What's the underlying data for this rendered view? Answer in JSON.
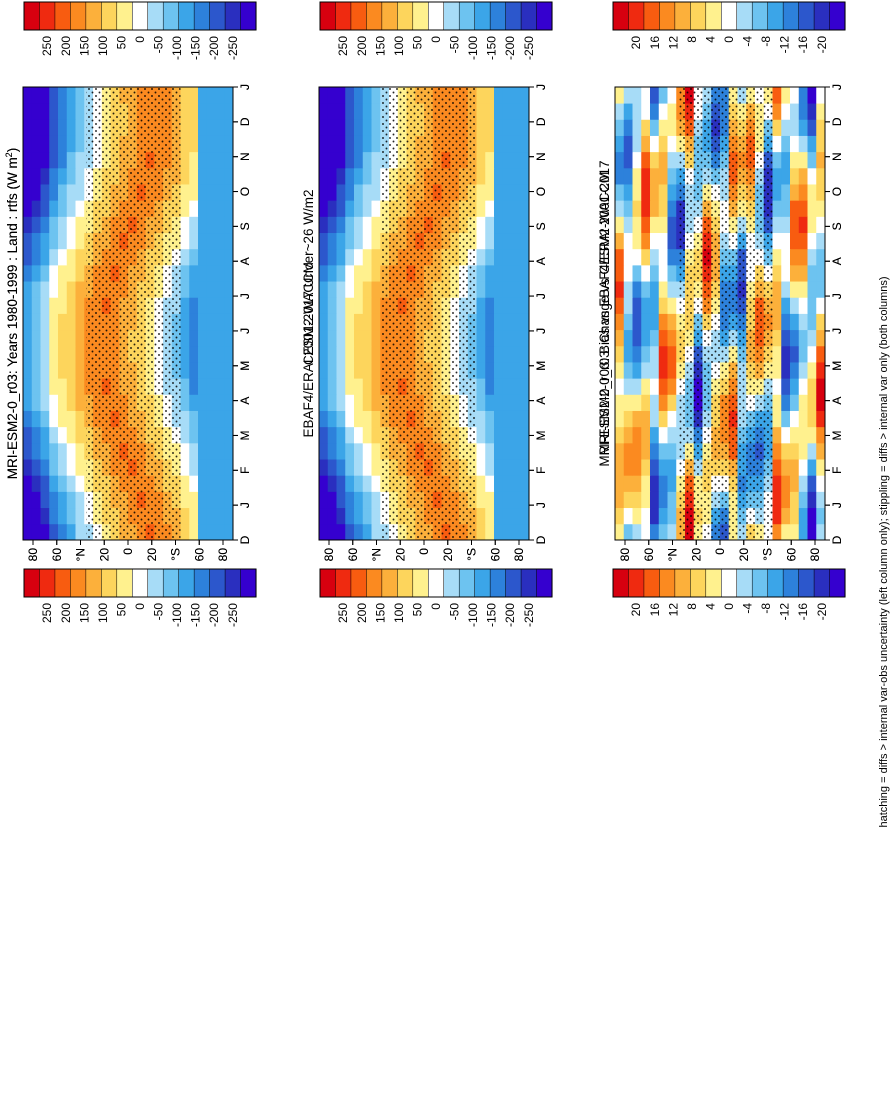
{
  "figure_caption": "hatching = diffs > internal var-obs uncertainty (left column only); stippling = diffs > internal var only (both columns)",
  "chart_data": [
    {
      "type": "heatmap",
      "id": "p1",
      "title": "MRI-ESM2-0_r03: Years 1980-1999 : Land : rtfs (W m",
      "title_sup": "2",
      "title_close": ")",
      "x_ticks": [
        "D",
        "J",
        "F",
        "M",
        "A",
        "M",
        "J",
        "J",
        "A",
        "S",
        "O",
        "N",
        "D",
        "J"
      ],
      "y_ticks": [
        "80",
        "60",
        "°N",
        "20",
        "0",
        "20",
        "°S",
        "60",
        "80"
      ],
      "colorbar": [
        "250",
        "200",
        "150",
        "100",
        "50",
        "0",
        "-50",
        "-100",
        "-150",
        "-200",
        "-250"
      ],
      "zlim": [
        -275,
        275
      ],
      "units": "W m-2"
    },
    {
      "type": "heatmap",
      "id": "p2",
      "title": "EBAF4/ERAI 2001-2017 Uncer~26 W/m2",
      "x_ticks": [
        "D",
        "J",
        "F",
        "M",
        "A",
        "M",
        "J",
        "J",
        "A",
        "S",
        "O",
        "N",
        "D",
        "J"
      ],
      "y_ticks": [
        "80",
        "60",
        "°N",
        "20",
        "0",
        "20",
        "°S",
        "60",
        "80"
      ],
      "colorbar": [
        "250",
        "200",
        "150",
        "100",
        "50",
        "0",
        "-50",
        "-100",
        "-150",
        "-200",
        "-250"
      ],
      "zlim": [
        -275,
        275
      ],
      "units": "W m-2"
    },
    {
      "type": "heatmap",
      "id": "p3",
      "title": "MRI-ESM2-0_r03: Bias vs EBAF4/ERAI 2001-2017",
      "x_ticks": [
        "D",
        "J",
        "F",
        "M",
        "A",
        "M",
        "J",
        "J",
        "A",
        "S",
        "O",
        "N",
        "D",
        "J"
      ],
      "y_ticks": [
        "80",
        "60",
        "°N",
        "20",
        "0",
        "20",
        "°S",
        "60",
        "80"
      ],
      "colorbar": [
        "20",
        "16",
        "12",
        "8",
        "4",
        "0",
        "-4",
        "-8",
        "-12",
        "-16",
        "-20"
      ],
      "zlim": [
        -22,
        22
      ],
      "units": "W m-2"
    },
    {
      "type": "heatmap",
      "id": "p4",
      "title": "MRI-ESM2-0_r03: Years 1980-1999 : Land : rtfs (W m",
      "title_sup": "2",
      "title_close": ")",
      "x_ticks": [
        "D",
        "J",
        "F",
        "M",
        "A",
        "M",
        "J",
        "J",
        "A",
        "S",
        "O",
        "N",
        "D",
        "J"
      ],
      "y_ticks": [
        "80",
        "60",
        "°N",
        "20",
        "0",
        "20",
        "°S",
        "60",
        "80"
      ],
      "colorbar": [
        "250",
        "200",
        "150",
        "100",
        "50",
        "0",
        "-50",
        "-100",
        "-150",
        "-200",
        "-250"
      ],
      "zlim": [
        -275,
        275
      ],
      "units": "W m-2"
    },
    {
      "type": "heatmap",
      "id": "p5",
      "title": "CESM2-WACCM",
      "x_ticks": [
        "D",
        "J",
        "F",
        "M",
        "A",
        "M",
        "J",
        "J",
        "A",
        "S",
        "O",
        "N",
        "D",
        "J"
      ],
      "y_ticks": [
        "80",
        "60",
        "°N",
        "20",
        "0",
        "20",
        "°S",
        "60",
        "80"
      ],
      "colorbar": [
        "250",
        "200",
        "150",
        "100",
        "50",
        "0",
        "-50",
        "-100",
        "-150",
        "-200",
        "-250"
      ],
      "zlim": [
        -275,
        275
      ],
      "units": "W m-2"
    },
    {
      "type": "heatmap",
      "id": "p6",
      "title": "MRI-ESM2-0_r03: Change vs CESM2-WACCM",
      "x_ticks": [
        "D",
        "J",
        "F",
        "M",
        "A",
        "M",
        "J",
        "J",
        "A",
        "S",
        "O",
        "N",
        "D",
        "J"
      ],
      "y_ticks": [
        "80",
        "60",
        "°N",
        "20",
        "0",
        "20",
        "°S",
        "60",
        "80"
      ],
      "colorbar": [
        "20",
        "16",
        "12",
        "8",
        "4",
        "0",
        "-4",
        "-8",
        "-12",
        "-16",
        "-20"
      ],
      "zlim": [
        -22,
        22
      ],
      "units": "W m-2"
    }
  ],
  "colors": {
    "palette": [
      "#d7000f",
      "#ef2a10",
      "#f85c10",
      "#fb8a20",
      "#fcb03b",
      "#fdd55c",
      "#fff18e",
      "#ffffff",
      "#a7dcf7",
      "#6dc3f0",
      "#3ba5e8",
      "#2d81db",
      "#2c57cc",
      "#2a2fbf",
      "#3500cf"
    ]
  }
}
